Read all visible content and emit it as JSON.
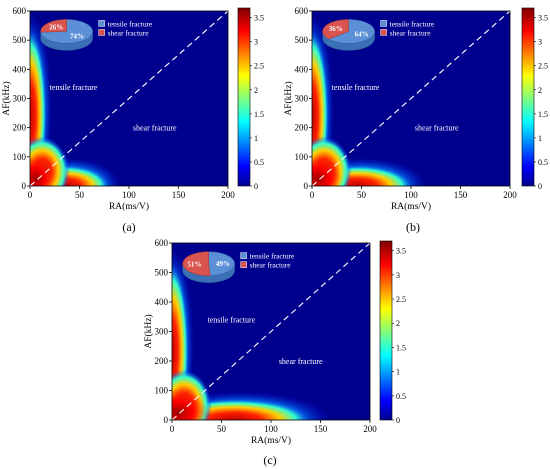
{
  "chart_data": [
    {
      "type": "heatmap",
      "panel_label": "(a)",
      "xlabel": "RA(ms/V)",
      "ylabel": "AF(kHz)",
      "xlim": [
        0,
        200
      ],
      "ylim": [
        0,
        600
      ],
      "xticks": [
        0,
        50,
        100,
        150,
        200
      ],
      "yticks": [
        0,
        100,
        200,
        300,
        400,
        500,
        600
      ],
      "colorbar": {
        "min": 0,
        "max": 3.7,
        "ticks": [
          "0",
          "0.5",
          "1",
          "1.5",
          "2",
          "2.5",
          "3",
          "3.5"
        ]
      },
      "divider": {
        "style": "dashed",
        "from": [
          0,
          0
        ],
        "to": [
          200,
          600
        ]
      },
      "region_labels": [
        {
          "text": "tensile fracture",
          "x": 44,
          "y": 330
        },
        {
          "text": "shear fracture",
          "x": 126,
          "y": 190
        }
      ],
      "density_extent": {
        "ra_upper": 95,
        "af_upper": 540
      },
      "pie": {
        "slices": [
          {
            "name": "tensile fracture",
            "percent": 74,
            "label": "74%",
            "color": "#5b8fd6"
          },
          {
            "name": "shear fracture",
            "percent": 26,
            "label": "26%",
            "color": "#d9534f"
          }
        ]
      }
    },
    {
      "type": "heatmap",
      "panel_label": "(b)",
      "xlabel": "RA(ms/V)",
      "ylabel": "AF(kHz)",
      "xlim": [
        0,
        200
      ],
      "ylim": [
        0,
        600
      ],
      "xticks": [
        0,
        50,
        100,
        150,
        200
      ],
      "yticks": [
        0,
        100,
        200,
        300,
        400,
        500,
        600
      ],
      "colorbar": {
        "min": 0,
        "max": 3.7,
        "ticks": [
          "0",
          "0.5",
          "1",
          "1.5",
          "2",
          "2.5",
          "3",
          "3.5"
        ]
      },
      "divider": {
        "style": "dashed",
        "from": [
          0,
          0
        ],
        "to": [
          200,
          600
        ]
      },
      "region_labels": [
        {
          "text": "tensile fracture",
          "x": 44,
          "y": 330
        },
        {
          "text": "shear fracture",
          "x": 126,
          "y": 190
        }
      ],
      "density_extent": {
        "ra_upper": 120,
        "af_upper": 530
      },
      "pie": {
        "slices": [
          {
            "name": "tensile fracture",
            "percent": 64,
            "label": "64%",
            "color": "#5b8fd6"
          },
          {
            "name": "shear fracture",
            "percent": 36,
            "label": "36%",
            "color": "#d9534f"
          }
        ]
      }
    },
    {
      "type": "heatmap",
      "panel_label": "(c)",
      "xlabel": "RA(ms/V)",
      "ylabel": "AF(kHz)",
      "xlim": [
        0,
        200
      ],
      "ylim": [
        0,
        600
      ],
      "xticks": [
        0,
        50,
        100,
        150,
        200
      ],
      "yticks": [
        0,
        100,
        200,
        300,
        400,
        500,
        600
      ],
      "colorbar": {
        "min": 0,
        "max": 3.7,
        "ticks": [
          "0",
          "0.5",
          "1",
          "1.5",
          "2",
          "2.5",
          "3",
          "3.5"
        ]
      },
      "divider": {
        "style": "dashed",
        "from": [
          0,
          0
        ],
        "to": [
          200,
          600
        ]
      },
      "region_labels": [
        {
          "text": "tensile fracture",
          "x": 60,
          "y": 330
        },
        {
          "text": "shear fracture",
          "x": 130,
          "y": 190
        }
      ],
      "density_extent": {
        "ra_upper": 165,
        "af_upper": 520
      },
      "pie": {
        "slices": [
          {
            "name": "tensile fracture",
            "percent": 49,
            "label": "49%",
            "color": "#5b8fd6"
          },
          {
            "name": "shear fracture",
            "percent": 51,
            "label": "51%",
            "color": "#d9534f"
          }
        ]
      }
    }
  ]
}
